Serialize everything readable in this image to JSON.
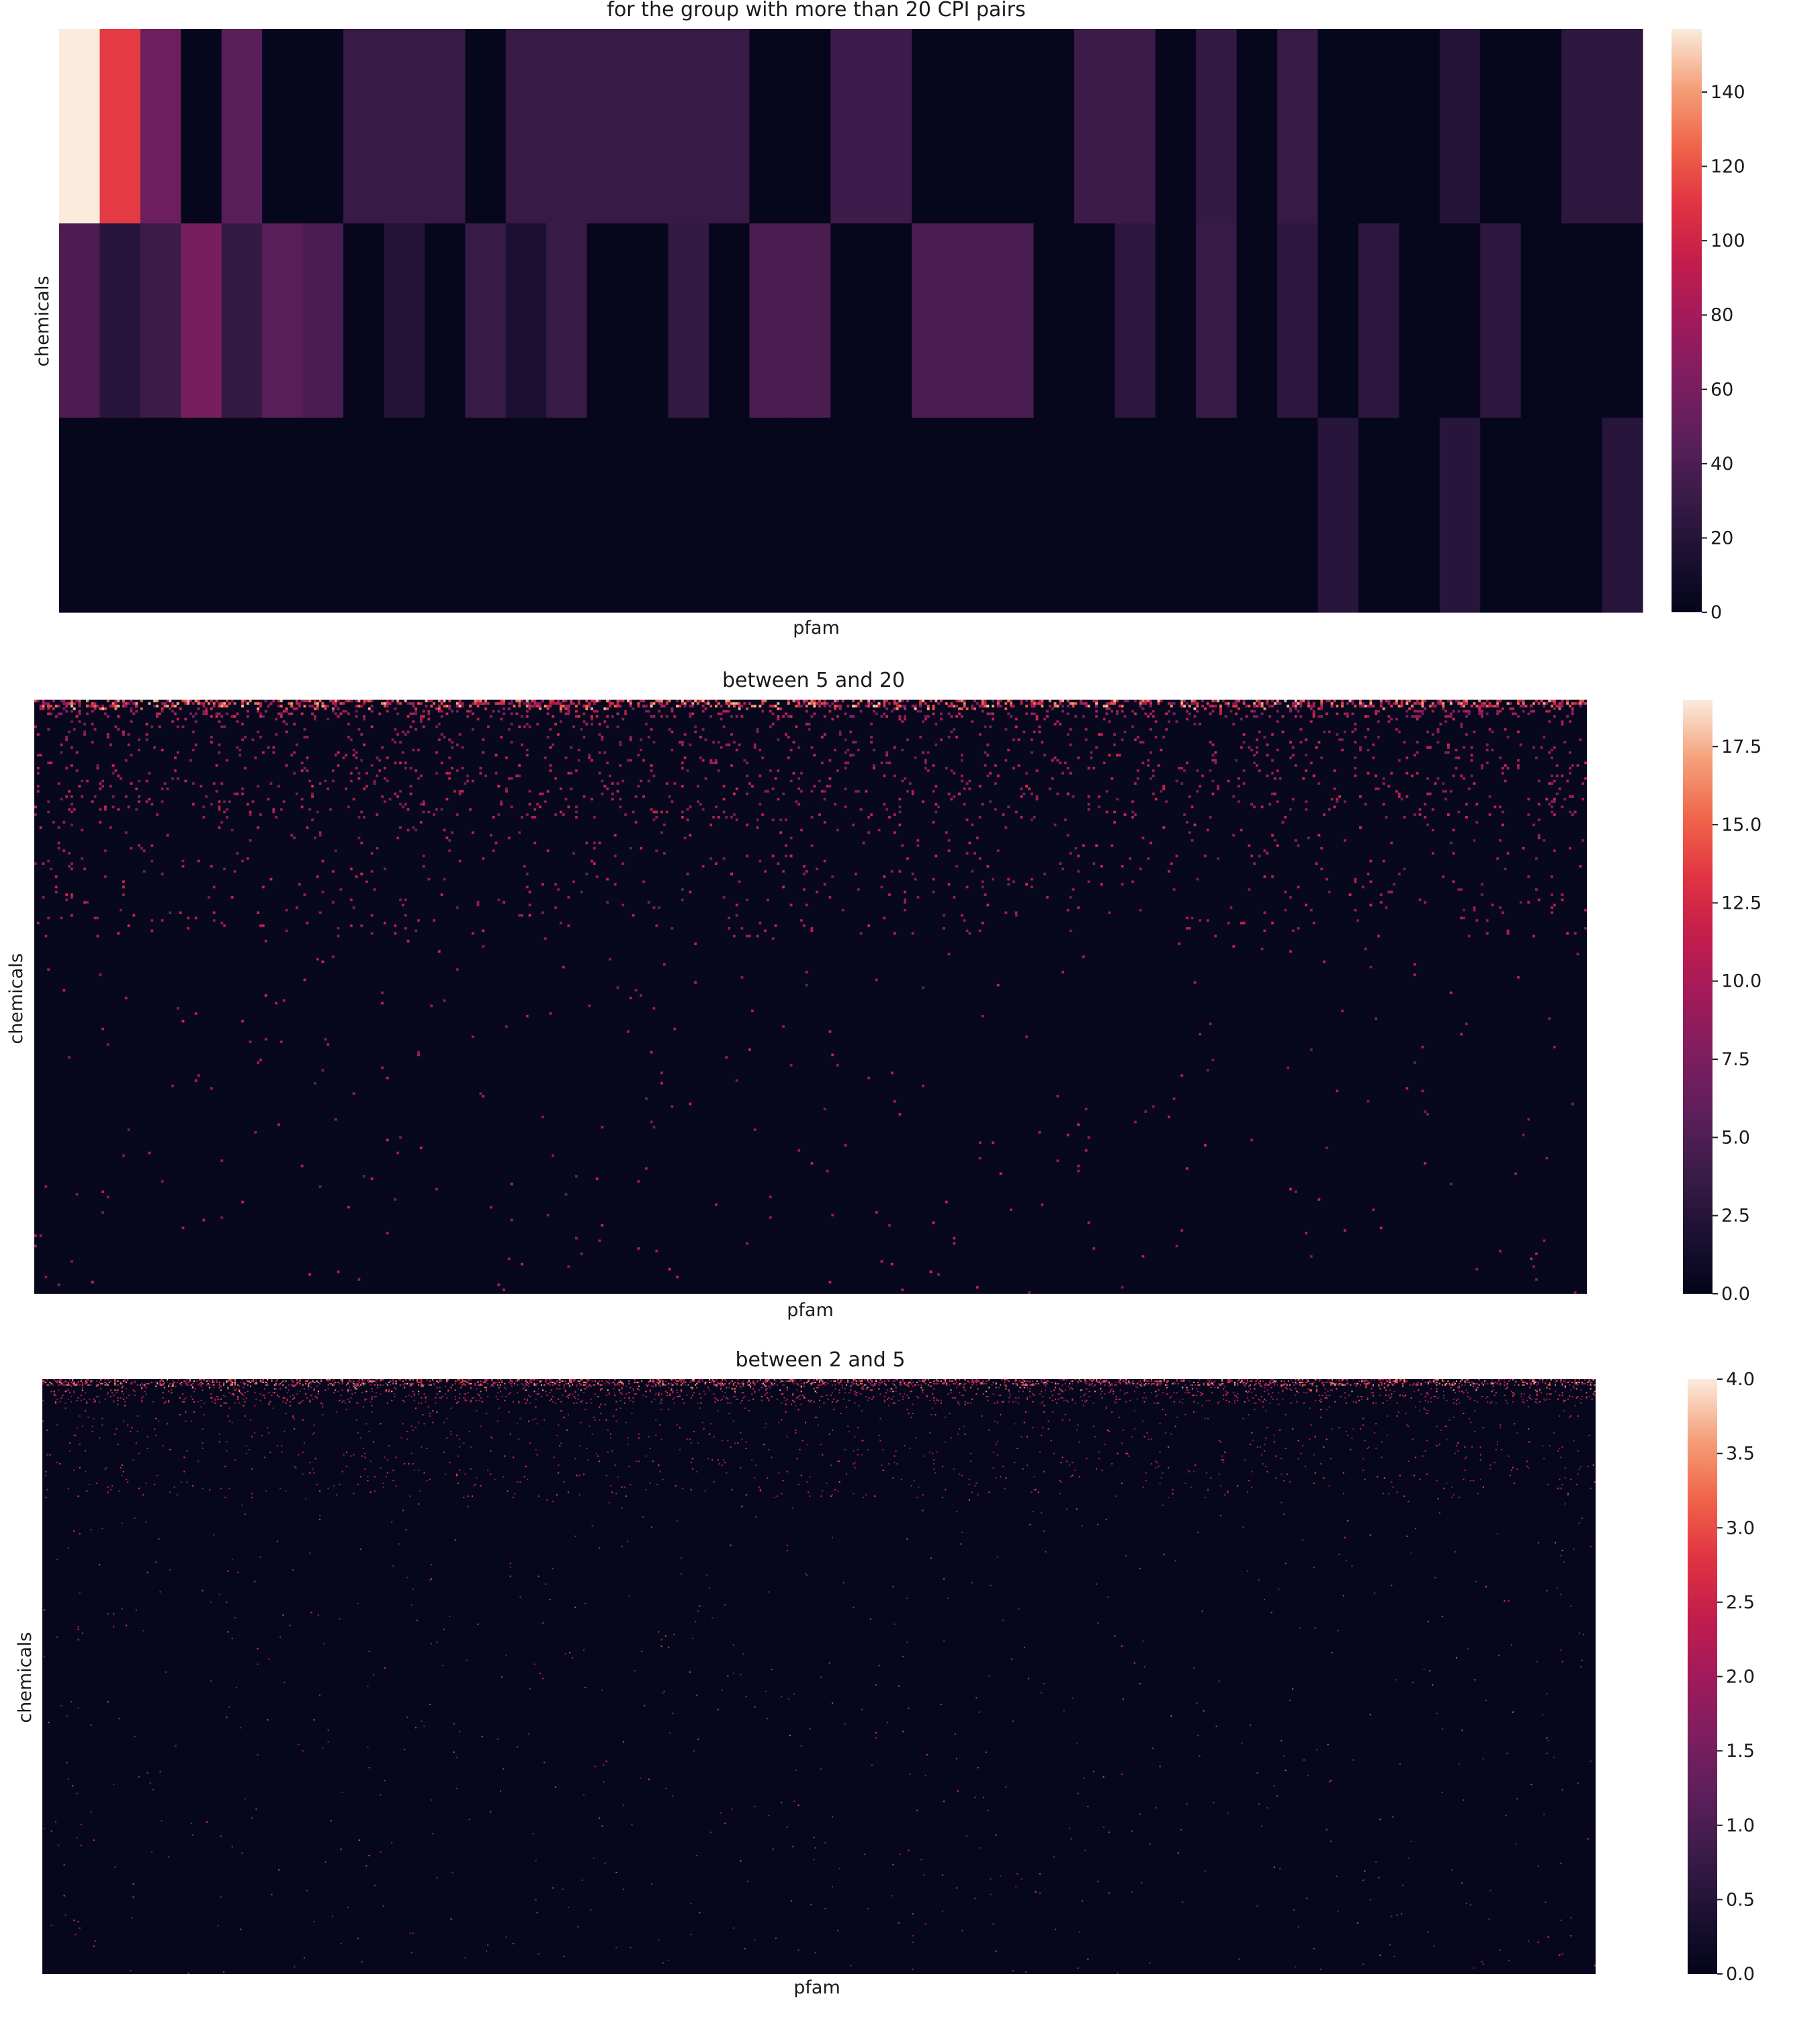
{
  "chart_data": [
    {
      "type": "heatmap",
      "title": "for the group with more than 20 CPI pairs",
      "xlabel": "pfam",
      "ylabel": "chemicals",
      "colormap": "rocket",
      "colorbar": {
        "min": 0,
        "max": 157,
        "ticks": [
          0,
          20,
          40,
          60,
          80,
          100,
          120,
          140
        ],
        "tick_labels": [
          "0",
          "20",
          "40",
          "60",
          "80",
          "100",
          "120",
          "140"
        ]
      },
      "rows": 3,
      "cols": 39,
      "values": [
        [
          157,
          112,
          55,
          2,
          45,
          2,
          2,
          30,
          30,
          30,
          2,
          30,
          30,
          30,
          30,
          30,
          30,
          2,
          2,
          33,
          33,
          2,
          2,
          2,
          2,
          32,
          32,
          2,
          28,
          2,
          30,
          2,
          2,
          2,
          20,
          2,
          2,
          25,
          25
        ],
        [
          40,
          22,
          32,
          60,
          28,
          45,
          38,
          2,
          20,
          2,
          30,
          15,
          30,
          2,
          2,
          28,
          2,
          38,
          38,
          2,
          2,
          38,
          38,
          38,
          2,
          2,
          25,
          2,
          30,
          2,
          25,
          2,
          25,
          2,
          2,
          25,
          2,
          2,
          2
        ],
        [
          2,
          2,
          2,
          2,
          2,
          2,
          2,
          2,
          2,
          2,
          2,
          2,
          2,
          2,
          2,
          2,
          2,
          2,
          2,
          2,
          2,
          2,
          2,
          2,
          2,
          2,
          2,
          2,
          2,
          2,
          2,
          22,
          2,
          2,
          22,
          2,
          2,
          2,
          22
        ]
      ]
    },
    {
      "type": "heatmap",
      "title": "between 5 and 20",
      "xlabel": "pfam",
      "ylabel": "chemicals",
      "colormap": "rocket",
      "colorbar": {
        "min": 0,
        "max": 19,
        "ticks": [
          0,
          2.5,
          5,
          7.5,
          10,
          12.5,
          15,
          17.5
        ],
        "tick_labels": [
          "0.0",
          "2.5",
          "5.0",
          "7.5",
          "10.0",
          "12.5",
          "15.0",
          "17.5"
        ]
      },
      "background_value": 0.3,
      "rows": 230,
      "cols": 600
    },
    {
      "type": "heatmap",
      "title": "between 2 and 5",
      "xlabel": "pfam",
      "ylabel": "chemicals",
      "colormap": "rocket",
      "colorbar": {
        "min": 0,
        "max": 4,
        "ticks": [
          0,
          0.5,
          1,
          1.5,
          2,
          2.5,
          3,
          3.5,
          4
        ],
        "tick_labels": [
          "0.0",
          "0.5",
          "1.0",
          "1.5",
          "2.0",
          "2.5",
          "3.0",
          "3.5",
          "4.0"
        ]
      },
      "background_value": 0.05,
      "rows": 460,
      "cols": 1100
    }
  ]
}
